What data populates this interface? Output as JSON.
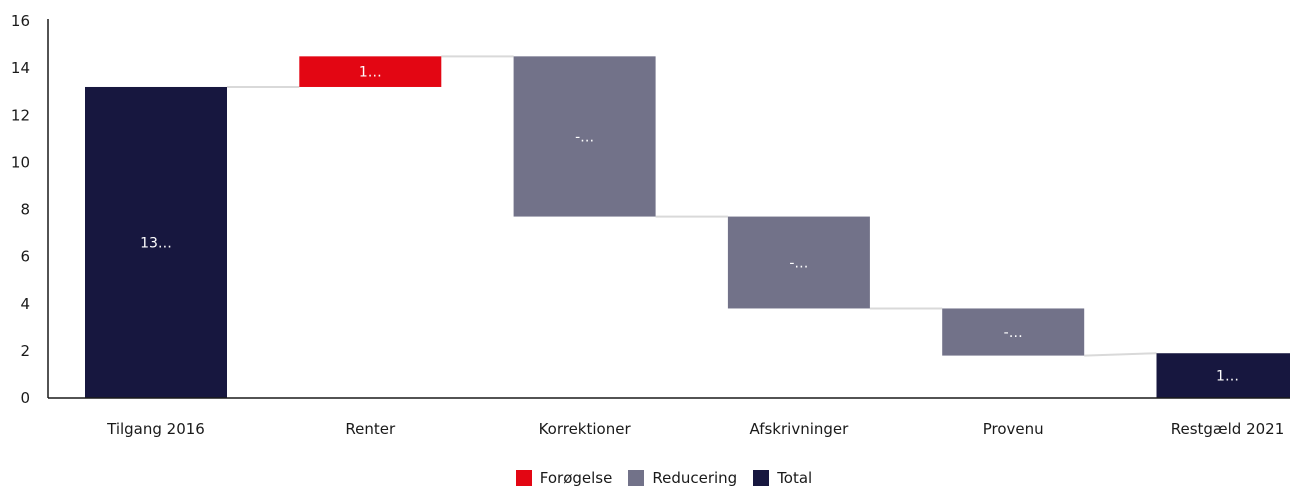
{
  "chart_data": {
    "type": "waterfall",
    "categories": [
      "Tilgang 2016",
      "Renter",
      "Korrektioner",
      "Afskrivninger",
      "Provenu",
      "Restgæld 2021"
    ],
    "bars": [
      {
        "category": "Tilgang 2016",
        "kind": "total",
        "start": 0,
        "end": 13.2,
        "label": "13…"
      },
      {
        "category": "Renter",
        "kind": "increase",
        "start": 13.2,
        "end": 14.5,
        "label": "1…"
      },
      {
        "category": "Korrektioner",
        "kind": "decrease",
        "start": 14.5,
        "end": 7.7,
        "label": "-…"
      },
      {
        "category": "Afskrivninger",
        "kind": "decrease",
        "start": 7.7,
        "end": 3.8,
        "label": "-…"
      },
      {
        "category": "Provenu",
        "kind": "decrease",
        "start": 3.8,
        "end": 1.8,
        "label": "-…"
      },
      {
        "category": "Restgæld 2021",
        "kind": "total",
        "start": 0,
        "end": 1.9,
        "label": "1…"
      }
    ],
    "ylim": [
      0,
      16
    ],
    "yticks": [
      "0",
      "2",
      "4",
      "6",
      "8",
      "10",
      "12",
      "14",
      "16"
    ],
    "legend": [
      {
        "label": "Forøgelse",
        "kind": "increase"
      },
      {
        "label": "Reducering",
        "kind": "decrease"
      },
      {
        "label": "Total",
        "kind": "total"
      }
    ],
    "legend_position": "bottom-center",
    "grid": false
  },
  "colors": {
    "increase": "#e30613",
    "decrease": "#727289",
    "total": "#17173f",
    "connector": "#d9d9d9",
    "axis": "#1a1a1a"
  }
}
